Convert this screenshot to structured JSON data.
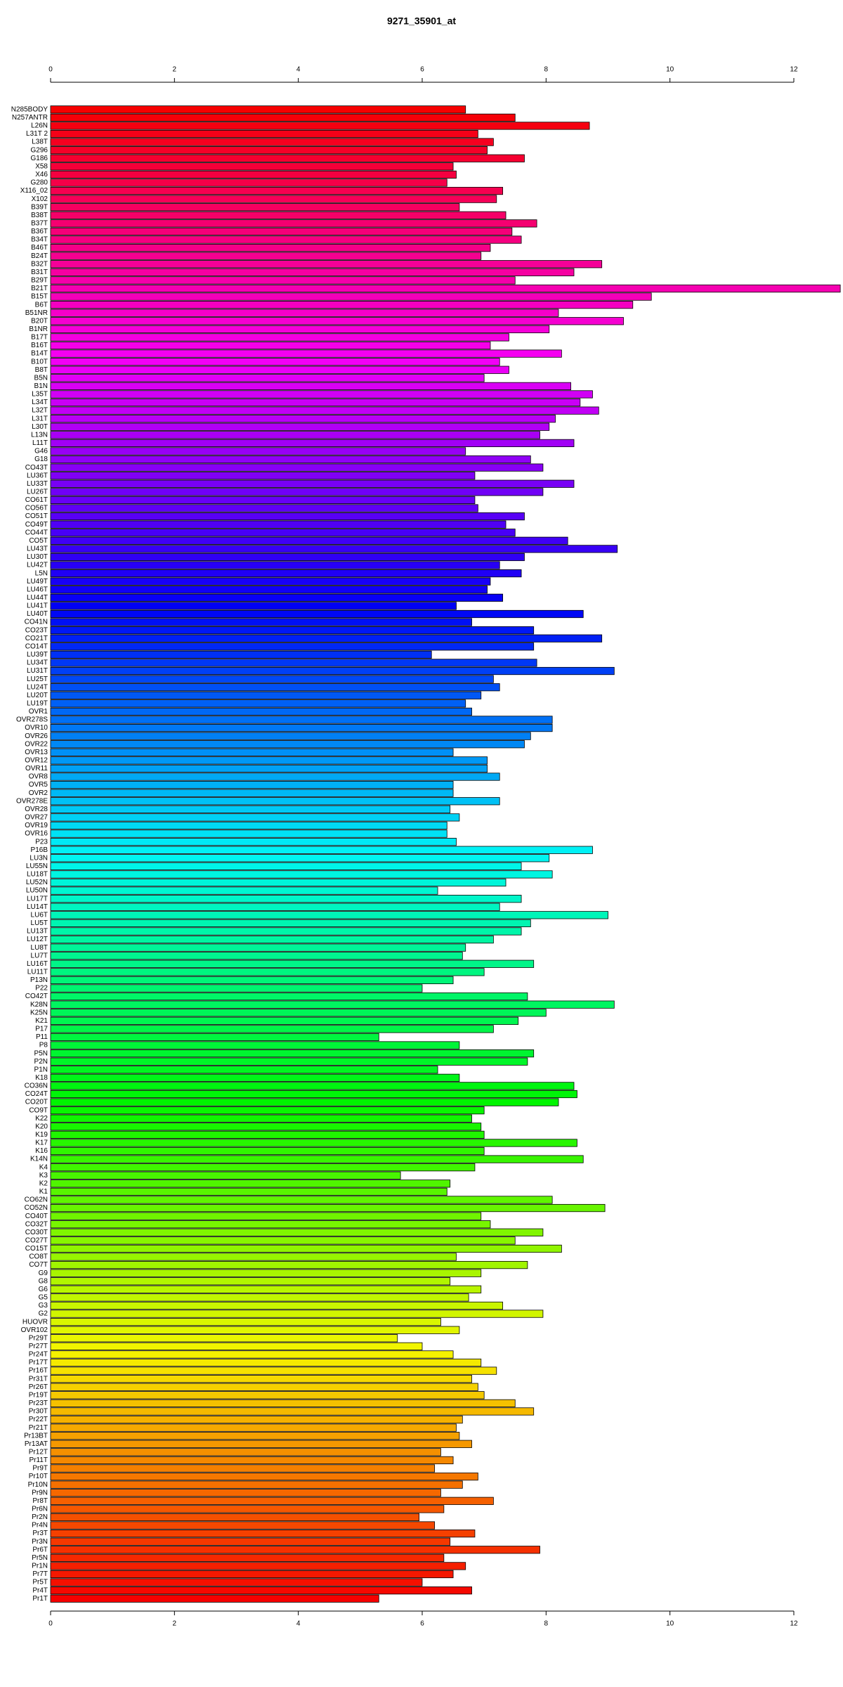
{
  "chart_data": {
    "type": "barh",
    "title": "9271_35901_at",
    "palette": "rainbow",
    "categories": [
      "N285BODY",
      "N257ANTR",
      "L26N",
      "L31T 2",
      "L38T",
      "G296",
      "G186",
      "X58",
      "X46",
      "G280",
      "X116_02",
      "X102",
      "B39T",
      "B38T",
      "B37T",
      "B36T",
      "B34T",
      "B46T",
      "B24T",
      "B32T",
      "B31T",
      "B29T",
      "B21T",
      "B15T",
      "B6T",
      "B51NR",
      "B20T",
      "B1NR",
      "B17T",
      "B16T",
      "B14T",
      "B10T",
      "B8T",
      "B5N",
      "B1N",
      "L35T",
      "L34T",
      "L32T",
      "L31T",
      "L30T",
      "L13N",
      "L11T",
      "G46",
      "G18",
      "CO43T",
      "LU36T",
      "LU33T",
      "LU26T",
      "CO61T",
      "CO56T",
      "CO51T",
      "CO49T",
      "CO44T",
      "CO5T",
      "LU43T",
      "LU30T",
      "LU42T",
      "L5N",
      "LU49T",
      "LU46T",
      "LU44T",
      "LU41T",
      "LU40T",
      "CO41N",
      "CO23T",
      "CO21T",
      "CO14T",
      "LU39T",
      "LU34T",
      "LU31T",
      "LU25T",
      "LU24T",
      "LU20T",
      "LU19T",
      "OVR1",
      "OVR278S",
      "OVR10",
      "OVR26",
      "OVR22",
      "OVR13",
      "OVR12",
      "OVR11",
      "OVR8",
      "OVR5",
      "OVR2",
      "OVR278E",
      "OVR28",
      "OVR27",
      "OVR19",
      "OVR16",
      "P23",
      "P16B",
      "LU3N",
      "LU55N",
      "LU18T",
      "LU52N",
      "LU50N",
      "LU17T",
      "LU14T",
      "LU6T",
      "LU5T",
      "LU13T",
      "LU12T",
      "LU8T",
      "LU7T",
      "LU16T",
      "LU11T",
      "P13N",
      "P22",
      "CO42T",
      "K28N",
      "K25N",
      "K21",
      "P17",
      "P11",
      "P8",
      "P5N",
      "P2N",
      "P1N",
      "K18",
      "CO36N",
      "CO24T",
      "CO20T",
      "CO9T",
      "K22",
      "K20",
      "K19",
      "K17",
      "K16",
      "K14N",
      "K4",
      "K3",
      "K2",
      "K1",
      "CO62N",
      "CO52N",
      "CO40T",
      "CO32T",
      "CO30T",
      "CO27T",
      "CO15T",
      "CO8T",
      "CO7T",
      "G9",
      "G8",
      "G6",
      "G5",
      "G3",
      "G2",
      "HUOVR",
      "OVR102",
      "Pr29T",
      "Pr27T",
      "Pr24T",
      "Pr17T",
      "Pr16T",
      "Pr31T",
      "Pr26T",
      "Pr19T",
      "Pr23T",
      "Pr30T",
      "Pr22T",
      "Pr21T",
      "Pr13BT",
      "Pr13AT",
      "Pr12T",
      "Pr11T",
      "Pr9T",
      "Pr10T",
      "Pr10N",
      "Pr9N",
      "Pr8T",
      "Pr6N",
      "Pr2N",
      "Pr4N",
      "Pr3T",
      "Pr3N",
      "Pr6T",
      "Pr5N",
      "Pr1N",
      "Pr7T",
      "Pr5T",
      "Pr4T",
      "Pr1T"
    ],
    "values": [
      6.7,
      7.5,
      8.7,
      6.9,
      7.15,
      7.05,
      7.65,
      6.5,
      6.55,
      6.4,
      7.3,
      7.2,
      6.6,
      7.35,
      7.85,
      7.45,
      7.6,
      7.1,
      6.95,
      8.9,
      8.45,
      7.5,
      12.75,
      9.7,
      9.4,
      8.2,
      9.25,
      8.05,
      7.4,
      7.1,
      8.25,
      7.25,
      7.4,
      7.0,
      8.4,
      8.75,
      8.55,
      8.85,
      8.15,
      8.05,
      7.9,
      8.45,
      6.7,
      7.75,
      7.95,
      6.85,
      8.45,
      7.95,
      6.85,
      6.9,
      7.65,
      7.35,
      7.5,
      8.35,
      9.15,
      7.65,
      7.25,
      7.6,
      7.1,
      7.05,
      7.3,
      6.55,
      8.6,
      6.8,
      7.8,
      8.9,
      7.8,
      6.15,
      7.85,
      9.1,
      7.15,
      7.25,
      6.95,
      6.7,
      6.8,
      8.1,
      8.1,
      7.75,
      7.65,
      6.5,
      7.05,
      7.05,
      7.25,
      6.5,
      6.5,
      7.25,
      6.45,
      6.6,
      6.4,
      6.4,
      6.55,
      8.75,
      8.05,
      7.6,
      8.1,
      7.35,
      6.25,
      7.6,
      7.25,
      9.0,
      7.75,
      7.6,
      7.15,
      6.7,
      6.65,
      7.8,
      7.0,
      6.5,
      6.0,
      7.7,
      9.1,
      8.0,
      7.55,
      7.15,
      5.3,
      6.6,
      7.8,
      7.7,
      6.25,
      6.6,
      8.45,
      8.5,
      8.2,
      7.0,
      6.8,
      6.95,
      7.0,
      8.5,
      7.0,
      8.6,
      6.85,
      5.65,
      6.45,
      6.4,
      8.1,
      8.95,
      6.95,
      7.1,
      7.95,
      7.5,
      8.25,
      6.55,
      7.7,
      6.95,
      6.45,
      6.95,
      6.75,
      7.3,
      7.95,
      6.3,
      6.6,
      5.6,
      6.0,
      6.5,
      6.95,
      7.2,
      6.8,
      6.9,
      7.0,
      7.5,
      7.8,
      6.65,
      6.55,
      6.6,
      6.8,
      6.3,
      6.5,
      6.2,
      6.9,
      6.65,
      6.3,
      7.15,
      6.35,
      5.95,
      6.2,
      6.85,
      6.45,
      7.9,
      6.35,
      6.7,
      6.5,
      6.0,
      6.8,
      5.3
    ],
    "xlim": [
      0,
      12
    ],
    "xticks": [
      0,
      2,
      4,
      6,
      8,
      10,
      12
    ]
  }
}
